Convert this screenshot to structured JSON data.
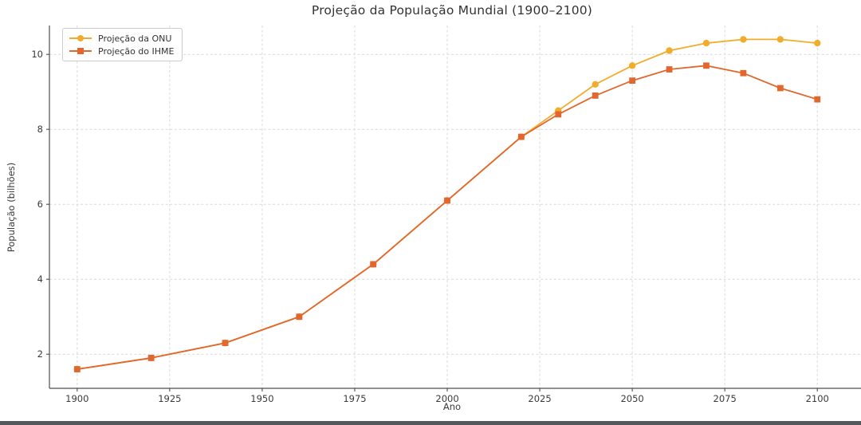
{
  "window": {
    "background_color": "#ffffff",
    "bottom_bar_color": "#55585a"
  },
  "chart_data": {
    "type": "line",
    "title": "Projeção da População Mundial (1900–2100)",
    "xlabel": "Ano",
    "ylabel": "População (bilhões)",
    "x": [
      1900,
      1920,
      1940,
      1960,
      1980,
      2000,
      2020,
      2030,
      2040,
      2050,
      2060,
      2070,
      2080,
      2090,
      2100
    ],
    "series": [
      {
        "name": "Projeção da ONU",
        "color": "#F2AC2B",
        "marker": "circle",
        "values": [
          1.6,
          1.9,
          2.3,
          3.0,
          4.4,
          6.1,
          7.8,
          8.5,
          9.2,
          9.7,
          10.1,
          10.3,
          10.4,
          10.4,
          10.3
        ]
      },
      {
        "name": "Projeção do IHME",
        "color": "#E2672E",
        "marker": "square",
        "values": [
          1.6,
          1.9,
          2.3,
          3.0,
          4.4,
          6.1,
          7.8,
          8.4,
          8.9,
          9.3,
          9.6,
          9.7,
          9.5,
          9.1,
          8.8
        ]
      }
    ],
    "xticks": [
      1900,
      1925,
      1950,
      1975,
      2000,
      2025,
      2050,
      2075,
      2100
    ],
    "yticks": [
      2,
      4,
      6,
      8,
      10
    ],
    "xlim": [
      1892.5,
      2111.8
    ],
    "ylim": [
      1.09,
      10.77
    ],
    "grid": true,
    "grid_style": "dashed",
    "legend_position": "upper left",
    "spine_color": "#4d4d4d",
    "grid_color": "#d9d9d9",
    "tick_label_color": "#3a3a3a"
  }
}
